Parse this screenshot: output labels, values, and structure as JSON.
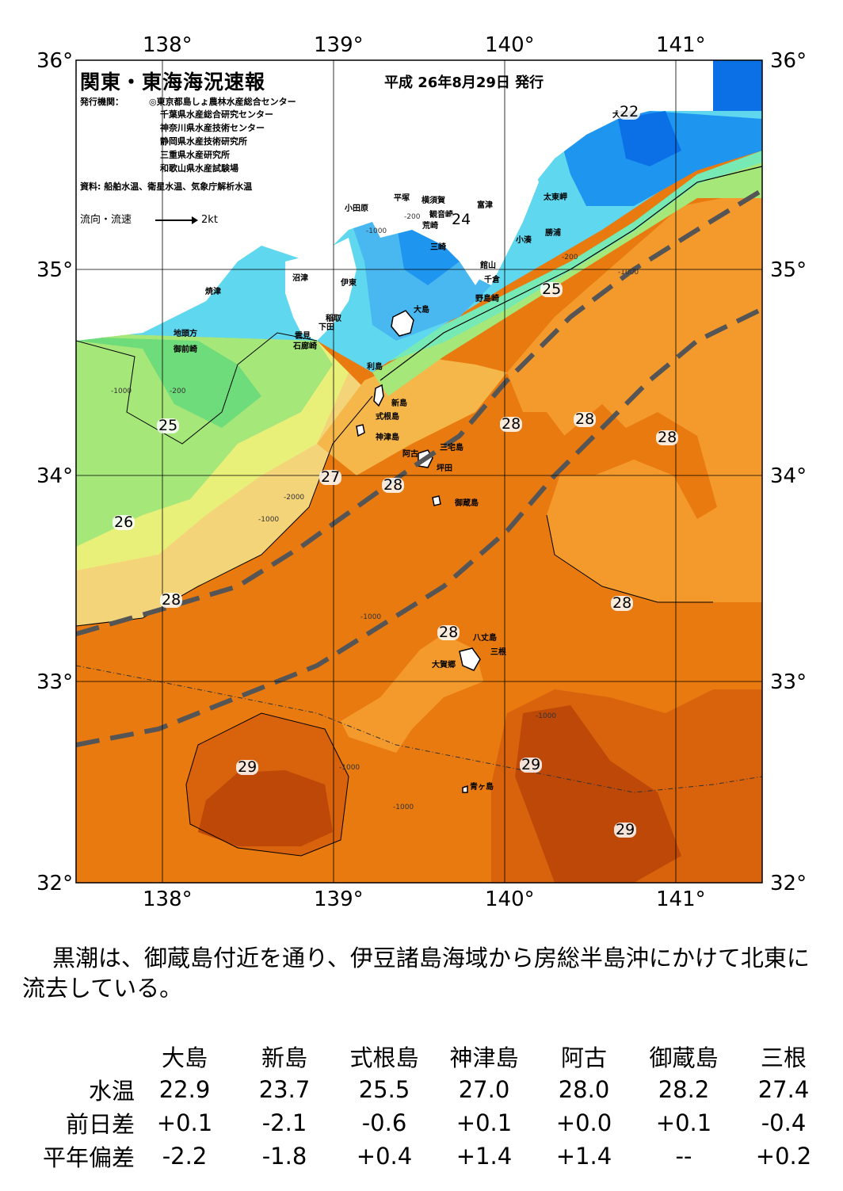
{
  "map": {
    "title": "関東・東海海況速報",
    "issue_date": "平成 26年8月29日 発行",
    "publisher_label": "発行機関：",
    "publishers": [
      "◎東京都島しょ農林水産総合センター",
      "千葉県水産総合研究センター",
      "神奈川県水産技術センター",
      "静岡県水産技術研究所",
      "三重県水産研究所",
      "和歌山県水産試験場"
    ],
    "source": "資料: 船舶水温、衛星水温、気象庁解析水温",
    "legend_label": "流向・流速",
    "legend_value": "2kt",
    "lon_labels": [
      "138°",
      "139°",
      "140°",
      "141°"
    ],
    "lat_labels": [
      "36°",
      "35°",
      "34°",
      "33°",
      "32°"
    ],
    "places": {
      "oshima": "大島",
      "niijima": "新島",
      "shikinejima": "式根島",
      "kozushima": "神津島",
      "miyakejima": "三宅島",
      "ako": "阿古",
      "tsubota": "坪田",
      "mikurajima": "御蔵島",
      "hachijojima": "八丈島",
      "mine": "三根",
      "okago": "大賀郷",
      "aogashima": "青ヶ島",
      "toshima": "利島",
      "odawara": "小田原",
      "hiratsuka": "平塚",
      "yokosuka": "横須賀",
      "kannonzaki": "観音崎",
      "futtsu": "富津",
      "arasaki": "荒崎",
      "misaki": "三崎",
      "tateyama": "館山",
      "chikura": "千倉",
      "nojimazaki": "野島崎",
      "kominato": "小湊",
      "katsuura": "勝浦",
      "taitomisaki": "太東岬",
      "inubozaki": "犬吠崎",
      "numazu": "沼津",
      "ito": "伊東",
      "inatori": "稲取",
      "shimoda": "下田",
      "mera": "雲見",
      "irozaki": "石廊崎",
      "yaizu": "焼津",
      "jitogata": "地頭方",
      "omaezaki": "御前崎"
    },
    "isotherms": [
      "22",
      "24",
      "25",
      "26",
      "27",
      "28",
      "29"
    ],
    "depth_labels": [
      "-200",
      "-1000",
      "-2000"
    ],
    "colors": {
      "t22": "#0b6fe6",
      "t23": "#1e96f0",
      "t24": "#4ab8f0",
      "t24b": "#5ed7ef",
      "t25": "#77e9b5",
      "t25b": "#6edc7a",
      "t26": "#a6e779",
      "t26b": "#e9f079",
      "t27": "#f4d479",
      "t27b": "#f5b64a",
      "t28": "#f49a2c",
      "t28b": "#e87a10",
      "t29": "#d9620c",
      "t29b": "#bd4808",
      "land": "#ffffff",
      "kuroshio": "#555555"
    }
  },
  "summary": "黒潮は、御蔵島付近を通り、伊豆諸島海域から房総半島沖にかけて北東に流去している。",
  "table": {
    "islands": [
      "大島",
      "新島",
      "式根島",
      "神津島",
      "阿古",
      "御蔵島",
      "三根"
    ],
    "rows": [
      {
        "label": "水温",
        "values": [
          "22.9",
          "23.7",
          "25.5",
          "27.0",
          "28.0",
          "28.2",
          "27.4"
        ]
      },
      {
        "label": "前日差",
        "values": [
          "+0.1",
          "-2.1",
          "-0.6",
          "+0.1",
          "+0.0",
          "+0.1",
          "-0.4"
        ]
      },
      {
        "label": "平年偏差",
        "values": [
          "-2.2",
          "-1.8",
          "+0.4",
          "+1.4",
          "+1.4",
          "--",
          "+0.2"
        ]
      }
    ]
  }
}
